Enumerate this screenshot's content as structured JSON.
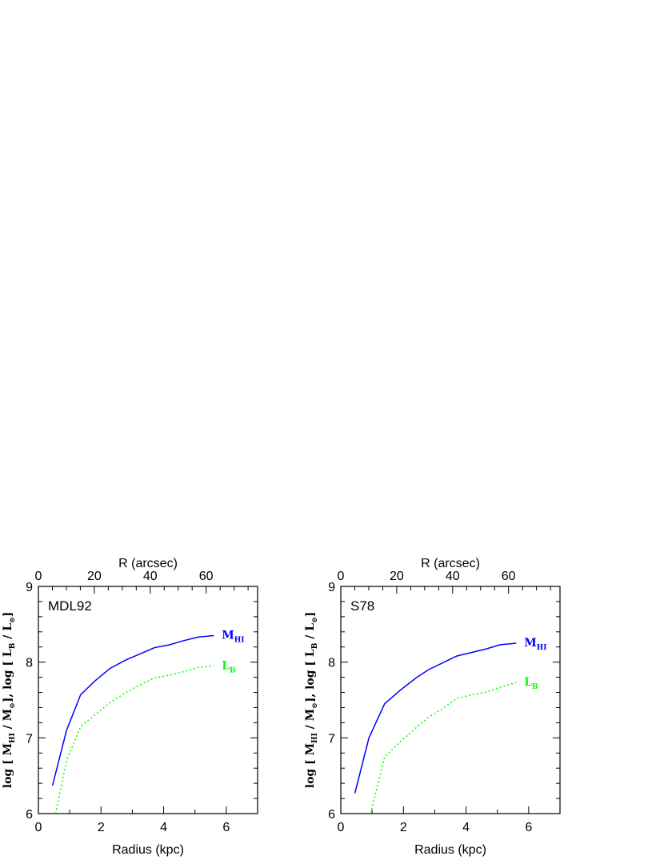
{
  "chart_data": [
    {
      "type": "line",
      "panel_label": "MDL92",
      "xlabel": "Radius (kpc)",
      "x2label": "R (arcsec)",
      "ylabel": {
        "parts": [
          "log [ M",
          "HI",
          " / M",
          "⊙",
          "], log [ L",
          "B",
          " / L",
          "⊙",
          "]"
        ]
      },
      "xlim": [
        0,
        7
      ],
      "ylim": [
        6,
        9
      ],
      "x2lim": [
        0,
        78.4
      ],
      "x_ticks": [
        0,
        2,
        4,
        6
      ],
      "y_ticks": [
        6,
        7,
        8,
        9
      ],
      "x2_ticks": [
        0,
        20,
        40,
        60
      ],
      "series": [
        {
          "name": "M",
          "name_sub": "HI",
          "color": "#0000ff",
          "style": "solid",
          "x": [
            0.45,
            0.9,
            1.35,
            1.8,
            2.3,
            2.8,
            3.2,
            3.7,
            4.2,
            4.6,
            5.1,
            5.6
          ],
          "y": [
            6.37,
            7.1,
            7.57,
            7.75,
            7.92,
            8.03,
            8.1,
            8.19,
            8.23,
            8.28,
            8.33,
            8.35
          ]
        },
        {
          "name": "L",
          "name_sub": "B",
          "color": "#00ff00",
          "style": "dotted",
          "x": [
            0.55,
            0.9,
            1.35,
            1.8,
            2.3,
            2.8,
            3.2,
            3.7,
            4.2,
            4.6,
            5.1,
            5.6
          ],
          "y": [
            6.0,
            6.7,
            7.15,
            7.3,
            7.47,
            7.6,
            7.69,
            7.79,
            7.83,
            7.87,
            7.93,
            7.95
          ]
        }
      ]
    },
    {
      "type": "line",
      "panel_label": "S78",
      "xlabel": "Radius (kpc)",
      "x2label": "R (arcsec)",
      "ylabel": {
        "parts": [
          "log [ M",
          "HI",
          " / M",
          "⊙",
          "], log [ L",
          "B",
          " / L",
          "⊙",
          "]"
        ]
      },
      "xlim": [
        0,
        7
      ],
      "ylim": [
        6,
        9
      ],
      "x2lim": [
        0,
        78.4
      ],
      "x_ticks": [
        0,
        2,
        4,
        6
      ],
      "y_ticks": [
        6,
        7,
        8,
        9
      ],
      "x2_ticks": [
        0,
        20,
        40,
        60
      ],
      "series": [
        {
          "name": "M",
          "name_sub": "HI",
          "color": "#0000ff",
          "style": "solid",
          "x": [
            0.45,
            0.9,
            1.4,
            1.9,
            2.4,
            2.8,
            3.3,
            3.7,
            4.2,
            4.6,
            5.1,
            5.6
          ],
          "y": [
            6.27,
            7.0,
            7.45,
            7.63,
            7.79,
            7.9,
            8.0,
            8.08,
            8.13,
            8.17,
            8.23,
            8.25
          ]
        },
        {
          "name": "L",
          "name_sub": "B",
          "color": "#00ff00",
          "style": "dotted",
          "x": [
            0.95,
            1.4,
            1.9,
            2.4,
            2.8,
            3.3,
            3.7,
            4.2,
            4.6,
            5.1,
            5.6
          ],
          "y": [
            6.0,
            6.75,
            6.95,
            7.13,
            7.27,
            7.4,
            7.52,
            7.57,
            7.6,
            7.67,
            7.73
          ]
        }
      ]
    }
  ]
}
